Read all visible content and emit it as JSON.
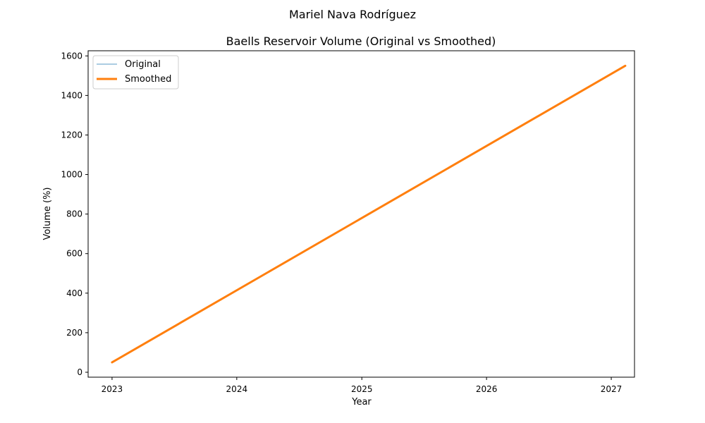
{
  "chart_data": {
    "type": "line",
    "suptitle": "Mariel Nava Rodríguez",
    "title": "Baells Reservoir Volume (Original vs Smoothed)",
    "xlabel": "Year",
    "ylabel": "Volume (%)",
    "xlim": [
      "2022-10-23",
      "2027-03-10"
    ],
    "ylim": [
      -25,
      1626
    ],
    "x_ticks": [
      {
        "date": "2023-01-01",
        "label": "2023"
      },
      {
        "date": "2024-01-01",
        "label": "2024"
      },
      {
        "date": "2025-01-01",
        "label": "2025"
      },
      {
        "date": "2026-01-01",
        "label": "2026"
      },
      {
        "date": "2027-01-01",
        "label": "2027"
      }
    ],
    "y_ticks": [
      0,
      200,
      400,
      600,
      800,
      1000,
      1200,
      1400,
      1600
    ],
    "grid": false,
    "legend_position": "upper-left",
    "series": [
      {
        "name": "Original",
        "color": "#1f77b4",
        "opacity": 0.5,
        "line_width": 1.5,
        "x": [
          "2023-01-01",
          "2027-02-11"
        ],
        "y": [
          50,
          1550
        ]
      },
      {
        "name": "Smoothed",
        "color": "#ff7f0e",
        "opacity": 1,
        "line_width": 3,
        "x": [
          "2023-01-01",
          "2027-02-11"
        ],
        "y": [
          50,
          1550
        ]
      }
    ]
  }
}
